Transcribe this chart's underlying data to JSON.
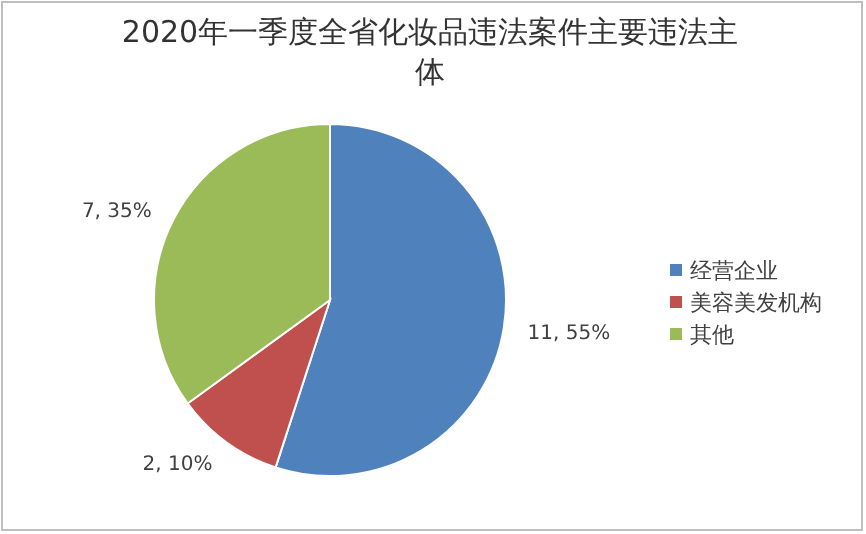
{
  "chart_data": {
    "type": "pie",
    "title": "2020年一季度全省化妆品违法案件主要违法主体",
    "categories": [
      "经营企业",
      "美容美发机构",
      "其他"
    ],
    "values": [
      11,
      2,
      7
    ],
    "value_labels": [
      "11, 55%",
      "2, 10%",
      "7, 35%"
    ],
    "colors": [
      "#4f81bd",
      "#c0504d",
      "#9bbb59"
    ],
    "legend": "right"
  }
}
